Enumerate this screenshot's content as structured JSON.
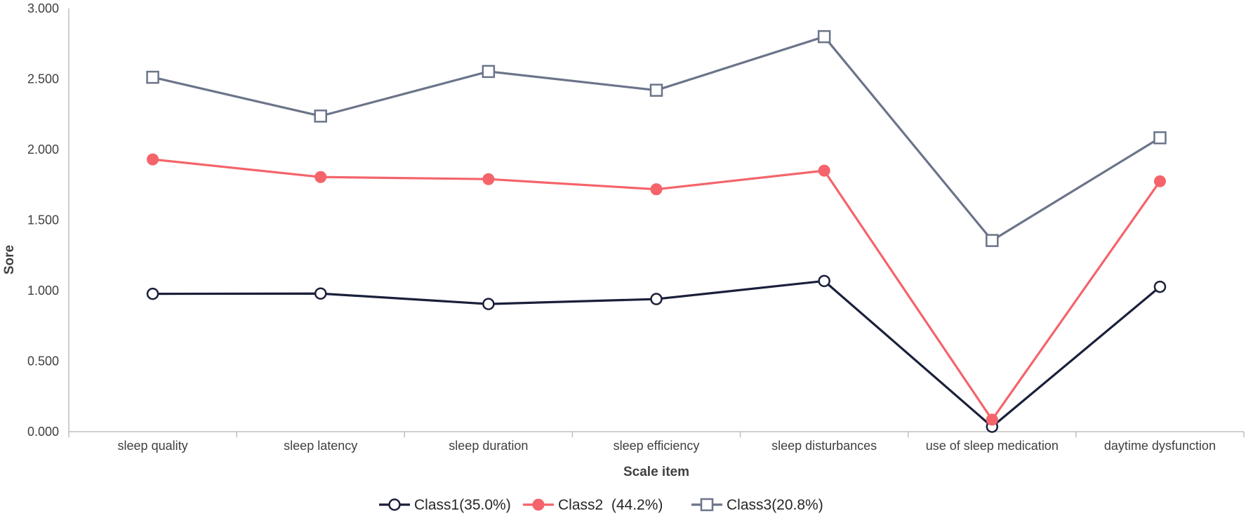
{
  "chart_data": {
    "type": "line",
    "title": "",
    "xlabel": "Scale item",
    "ylabel": "Sore",
    "ylim": [
      0,
      3
    ],
    "yticks": [
      "0.000",
      "0.500",
      "1.000",
      "1.500",
      "2.000",
      "2.500",
      "3.000"
    ],
    "ytick_values": [
      0,
      0.5,
      1,
      1.5,
      2,
      2.5,
      3
    ],
    "grid": false,
    "legend_position": "bottom",
    "categories": [
      "sleep quality",
      "sleep latency",
      "sleep duration",
      "sleep efficiency",
      "sleep disturbances",
      "use of sleep medication",
      "daytime dysfunction"
    ],
    "series": [
      {
        "name": "Class1(35.0%)",
        "marker": "open-circle",
        "color": "#1a1f3a",
        "values": [
          0.977,
          0.979,
          0.905,
          0.94,
          1.068,
          0.035,
          1.027
        ]
      },
      {
        "name": "Class2  (44.2%)",
        "marker": "filled-circle",
        "color": "#f4646a",
        "values": [
          1.93,
          1.805,
          1.79,
          1.718,
          1.85,
          0.085,
          1.775
        ]
      },
      {
        "name": "Class3(20.8%)",
        "marker": "open-square",
        "color": "#6b7489",
        "values": [
          2.512,
          2.237,
          2.553,
          2.42,
          2.8,
          1.355,
          2.083
        ]
      }
    ]
  }
}
